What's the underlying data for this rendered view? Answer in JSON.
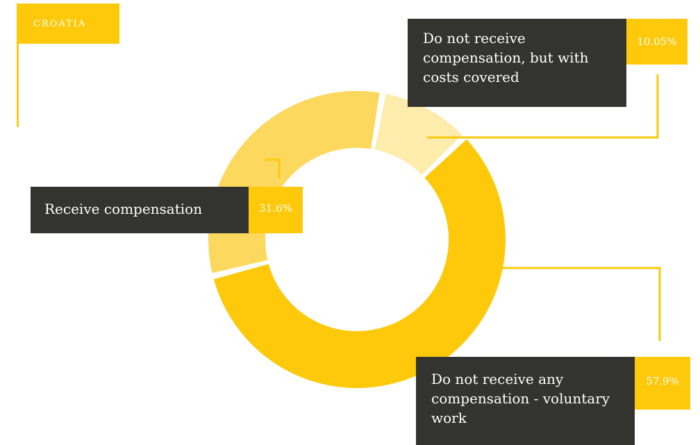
{
  "country_tag": "Croatia",
  "colors": {
    "accent": "#fdc90a",
    "slice_voluntary": "#fdc90a",
    "slice_receive": "#fdd85e",
    "slice_costs": "#feecad",
    "label_bg": "#333330"
  },
  "chart_data": {
    "type": "pie",
    "style": "donut",
    "categories": [
      "Do not receive any compensation - voluntary work",
      "Receive compensation",
      "Do not receive compensation, but with costs covered"
    ],
    "values": [
      57.9,
      31.6,
      10.05
    ],
    "value_labels": [
      "57.9%",
      "31.6%",
      "10.05%"
    ]
  }
}
